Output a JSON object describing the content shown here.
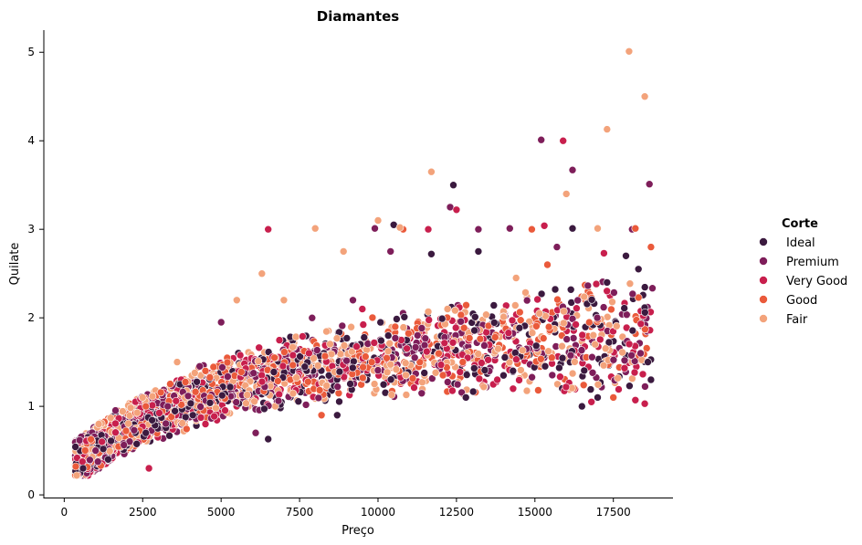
{
  "chart_data": {
    "type": "scatter",
    "title": "Diamantes",
    "xlabel": "Preço",
    "ylabel": "Quilate",
    "xlim": [
      -650,
      19400
    ],
    "ylim": [
      -0.03,
      5.25
    ],
    "xticks": [
      0,
      2500,
      5000,
      7500,
      10000,
      12500,
      15000,
      17500
    ],
    "yticks": [
      0,
      1,
      2,
      3,
      4,
      5
    ],
    "grid": false,
    "legend": {
      "title": "Corte",
      "placement": "right"
    },
    "series": [
      {
        "name": "Ideal",
        "color": "#3b1a3f",
        "points": [
          [
            600,
            0.3
          ],
          [
            1400,
            0.4
          ],
          [
            2600,
            0.7
          ],
          [
            4100,
            0.9
          ],
          [
            6500,
            0.63
          ],
          [
            8700,
            0.9
          ],
          [
            10500,
            3.05
          ],
          [
            11700,
            2.72
          ],
          [
            12400,
            3.5
          ],
          [
            12800,
            1.1
          ],
          [
            13200,
            2.75
          ],
          [
            14000,
            1.35
          ],
          [
            16200,
            3.01
          ],
          [
            16500,
            1.0
          ],
          [
            17000,
            1.1
          ],
          [
            17300,
            2.4
          ],
          [
            17900,
            2.7
          ],
          [
            18300,
            2.55
          ],
          [
            18600,
            1.5
          ],
          [
            18700,
            1.3
          ]
        ]
      },
      {
        "name": "Premium",
        "color": "#7e1e5a",
        "points": [
          [
            1000,
            0.5
          ],
          [
            3300,
            1.0
          ],
          [
            5000,
            1.95
          ],
          [
            6100,
            0.7
          ],
          [
            7900,
            2.0
          ],
          [
            9200,
            2.2
          ],
          [
            9900,
            3.01
          ],
          [
            10400,
            2.75
          ],
          [
            12300,
            3.25
          ],
          [
            13200,
            3.0
          ],
          [
            14200,
            3.01
          ],
          [
            15200,
            4.01
          ],
          [
            15700,
            2.8
          ],
          [
            16200,
            3.67
          ],
          [
            18100,
            3.0
          ],
          [
            18650,
            3.51
          ]
        ]
      },
      {
        "name": "Very Good",
        "color": "#c81f4d",
        "points": [
          [
            1200,
            0.6
          ],
          [
            2700,
            0.3
          ],
          [
            4500,
            0.8
          ],
          [
            6500,
            3.0
          ],
          [
            7800,
            1.6
          ],
          [
            9500,
            2.1
          ],
          [
            11600,
            3.0
          ],
          [
            12500,
            3.22
          ],
          [
            13800,
            1.3
          ],
          [
            15300,
            3.04
          ],
          [
            15900,
            4.0
          ],
          [
            16800,
            1.05
          ],
          [
            17200,
            2.73
          ],
          [
            18200,
            1.07
          ],
          [
            18500,
            1.03
          ]
        ]
      },
      {
        "name": "Good",
        "color": "#ea5a3b",
        "points": [
          [
            2600,
            1.0
          ],
          [
            4500,
            1.4
          ],
          [
            6700,
            1.55
          ],
          [
            8200,
            0.9
          ],
          [
            10800,
            3.0
          ],
          [
            12700,
            1.5
          ],
          [
            14900,
            3.0
          ],
          [
            15400,
            2.6
          ],
          [
            17500,
            1.1
          ],
          [
            18200,
            3.01
          ],
          [
            18700,
            2.8
          ]
        ]
      },
      {
        "name": "Fair",
        "color": "#f3a37b",
        "points": [
          [
            1100,
            0.8
          ],
          [
            2500,
            1.1
          ],
          [
            3600,
            1.5
          ],
          [
            5500,
            2.2
          ],
          [
            6300,
            2.5
          ],
          [
            7000,
            2.2
          ],
          [
            8000,
            3.01
          ],
          [
            8900,
            2.75
          ],
          [
            10000,
            3.1
          ],
          [
            10700,
            3.02
          ],
          [
            11700,
            3.65
          ],
          [
            14400,
            2.45
          ],
          [
            16000,
            3.4
          ],
          [
            17000,
            3.01
          ],
          [
            17300,
            4.13
          ],
          [
            18000,
            5.01
          ],
          [
            18500,
            4.5
          ]
        ]
      }
    ]
  }
}
